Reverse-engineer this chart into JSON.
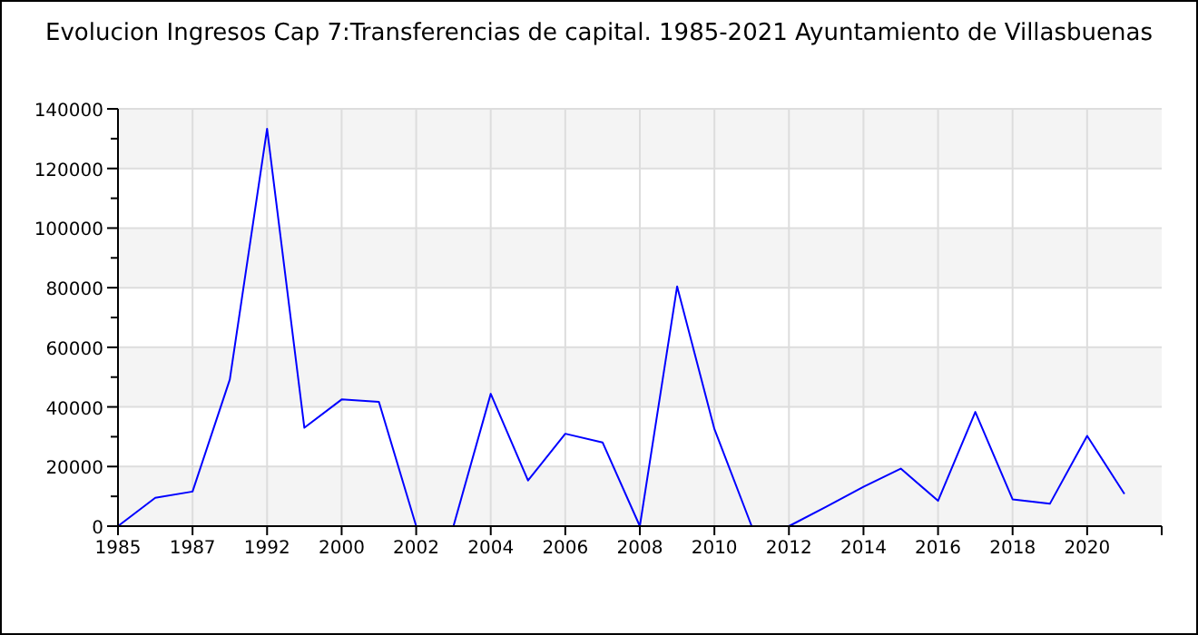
{
  "chart_data": {
    "type": "line",
    "title": "Evolucion Ingresos Cap 7:Transferencias de capital. 1985-2021 Ayuntamiento de Villasbuenas",
    "categories": [
      "1985",
      null,
      "1987",
      null,
      "1992",
      null,
      "2000",
      null,
      "2002",
      null,
      "2004",
      null,
      "2006",
      null,
      "2008",
      null,
      "2010",
      null,
      "2012",
      null,
      "2014",
      null,
      "2016",
      null,
      "2018",
      null,
      "2020",
      null
    ],
    "series": [
      {
        "color": "#0000ff",
        "values": [
          0,
          9500,
          11600,
          49200,
          133300,
          33000,
          42500,
          41700,
          0,
          0,
          44400,
          15300,
          31000,
          28100,
          0,
          80400,
          32600,
          0,
          0,
          6500,
          13200,
          19300,
          8500,
          38300,
          9000,
          7500,
          30300,
          10800
        ]
      }
    ],
    "ylim": [
      0,
      140000
    ],
    "yticks": [
      0,
      {
        "value": 10000,
        "label": null
      },
      20000,
      {
        "value": 30000,
        "label": null
      },
      40000,
      {
        "value": 50000,
        "label": null
      },
      60000,
      {
        "value": 70000,
        "label": null
      },
      80000,
      {
        "value": 90000,
        "label": null
      },
      100000,
      {
        "value": 110000,
        "label": null
      },
      120000,
      {
        "value": 130000,
        "label": null
      },
      140000
    ],
    "grid": true
  }
}
